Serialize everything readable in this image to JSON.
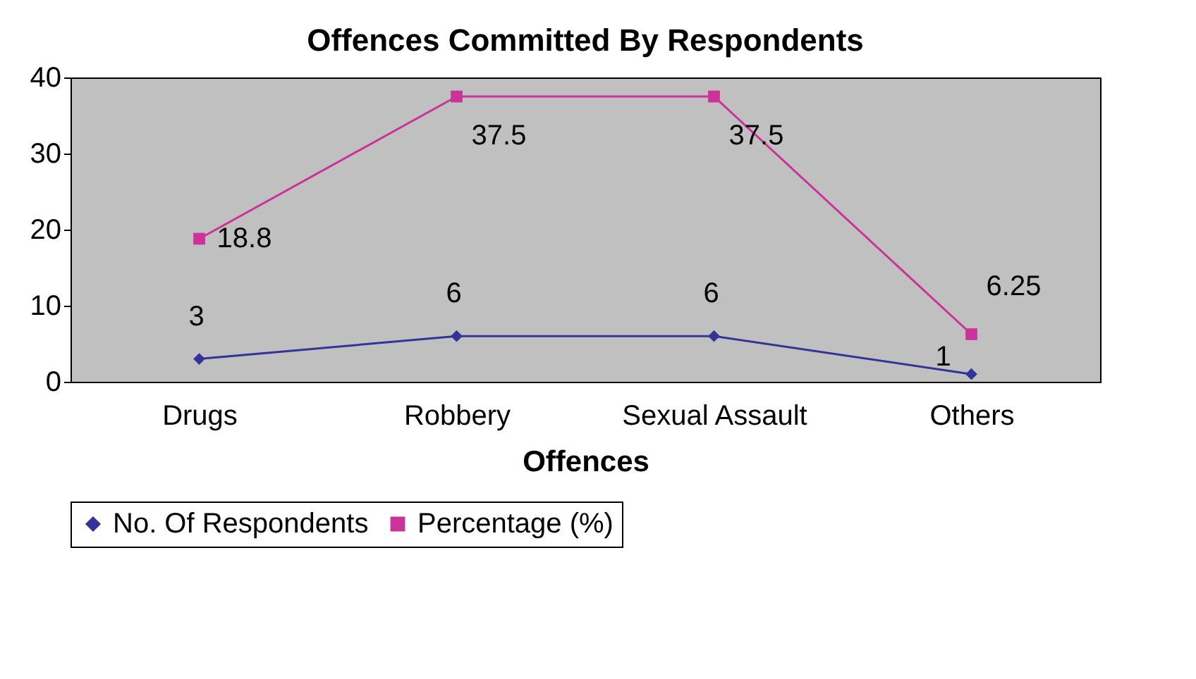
{
  "chart_data": {
    "type": "line",
    "title": "Offences Committed By Respondents",
    "xlabel": "Offences",
    "categories": [
      "Drugs",
      "Robbery",
      "Sexual Assault",
      "Others"
    ],
    "series": [
      {
        "name": "No. Of Respondents",
        "color": "#333399",
        "marker": "diamond",
        "values": [
          3,
          6,
          6,
          1
        ]
      },
      {
        "name": "Percentage (%)",
        "color": "#cc3399",
        "marker": "square",
        "values": [
          18.8,
          37.5,
          37.5,
          6.25
        ]
      }
    ],
    "ylim": [
      0,
      40
    ],
    "yticks": [
      0,
      10,
      20,
      30,
      40
    ],
    "grid": false,
    "legend": "bottom",
    "data_labels": true
  }
}
